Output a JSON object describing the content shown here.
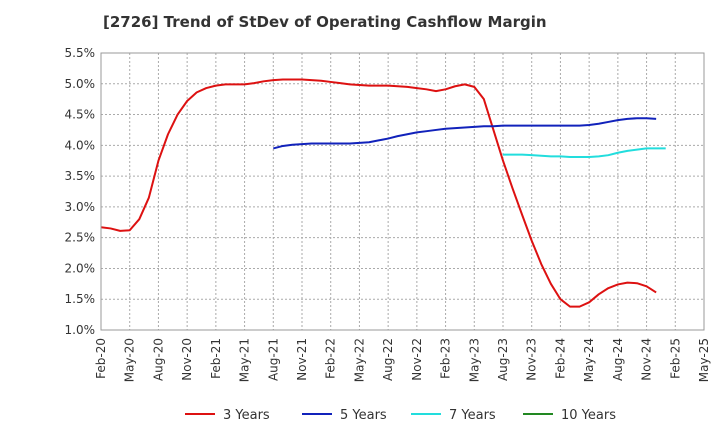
{
  "chart_data": {
    "type": "line",
    "title": "[2726]  Trend of StDev of Operating Cashflow Margin",
    "xlabel": "",
    "ylabel": "",
    "categories": [
      "Feb-20",
      "Mar-20",
      "Apr-20",
      "May-20",
      "Jun-20",
      "Jul-20",
      "Aug-20",
      "Sep-20",
      "Oct-20",
      "Nov-20",
      "Dec-20",
      "Jan-21",
      "Feb-21",
      "Mar-21",
      "Apr-21",
      "May-21",
      "Jun-21",
      "Jul-21",
      "Aug-21",
      "Sep-21",
      "Oct-21",
      "Nov-21",
      "Dec-21",
      "Jan-22",
      "Feb-22",
      "Mar-22",
      "Apr-22",
      "May-22",
      "Jun-22",
      "Jul-22",
      "Aug-22",
      "Sep-22",
      "Oct-22",
      "Nov-22",
      "Dec-22",
      "Jan-23",
      "Feb-23",
      "Mar-23",
      "Apr-23",
      "May-23",
      "Jun-23",
      "Jul-23",
      "Aug-23",
      "Sep-23",
      "Oct-23",
      "Nov-23",
      "Dec-23",
      "Jan-24",
      "Feb-24",
      "Mar-24",
      "Apr-24",
      "May-24",
      "Jun-24",
      "Jul-24",
      "Aug-24",
      "Sep-24",
      "Oct-24",
      "Nov-24",
      "Dec-24",
      "Jan-25",
      "Feb-25",
      "Mar-25",
      "Apr-25",
      "May-25"
    ],
    "x_tick_labels": [
      "Feb-20",
      "May-20",
      "Aug-20",
      "Nov-20",
      "Feb-21",
      "May-21",
      "Aug-21",
      "Nov-21",
      "Feb-22",
      "May-22",
      "Aug-22",
      "Nov-22",
      "Feb-23",
      "May-23",
      "Aug-23",
      "Nov-23",
      "Feb-24",
      "May-24",
      "Aug-24",
      "Nov-24",
      "Feb-25",
      "May-25"
    ],
    "y_tick_labels": [
      "1.0%",
      "1.5%",
      "2.0%",
      "2.5%",
      "3.0%",
      "3.5%",
      "4.0%",
      "4.5%",
      "5.0%",
      "5.5%"
    ],
    "ylim": [
      1.0,
      5.5
    ],
    "grid": true,
    "legend_position": "bottom",
    "series": [
      {
        "name": "3 Years",
        "color": "#dd1111",
        "values": [
          2.67,
          2.65,
          2.61,
          2.62,
          2.8,
          3.15,
          3.75,
          4.18,
          4.5,
          4.72,
          4.86,
          4.93,
          4.97,
          4.99,
          4.99,
          4.99,
          5.01,
          5.04,
          5.06,
          5.07,
          5.07,
          5.07,
          5.06,
          5.05,
          5.03,
          5.01,
          4.99,
          4.98,
          4.97,
          4.97,
          4.97,
          4.96,
          4.95,
          4.93,
          4.91,
          4.88,
          4.91,
          4.96,
          4.99,
          4.95,
          4.75,
          4.25,
          3.75,
          3.3,
          2.87,
          2.45,
          2.07,
          1.75,
          1.5,
          1.38,
          1.38,
          1.45,
          1.58,
          1.68,
          1.74,
          1.77,
          1.76,
          1.71,
          1.61,
          null,
          null,
          null,
          null,
          null
        ]
      },
      {
        "name": "5 Years",
        "color": "#1122bb",
        "values": [
          null,
          null,
          null,
          null,
          null,
          null,
          null,
          null,
          null,
          null,
          null,
          null,
          null,
          null,
          null,
          null,
          null,
          null,
          3.95,
          3.99,
          4.01,
          4.02,
          4.03,
          4.03,
          4.03,
          4.03,
          4.03,
          4.04,
          4.05,
          4.08,
          4.11,
          4.15,
          4.18,
          4.21,
          4.23,
          4.25,
          4.27,
          4.28,
          4.29,
          4.3,
          4.31,
          4.31,
          4.32,
          4.32,
          4.32,
          4.32,
          4.32,
          4.32,
          4.32,
          4.32,
          4.32,
          4.33,
          4.35,
          4.38,
          4.41,
          4.43,
          4.44,
          4.44,
          4.43,
          null,
          null,
          null,
          null,
          null
        ]
      },
      {
        "name": "7 Years",
        "color": "#22dddd",
        "values": [
          null,
          null,
          null,
          null,
          null,
          null,
          null,
          null,
          null,
          null,
          null,
          null,
          null,
          null,
          null,
          null,
          null,
          null,
          null,
          null,
          null,
          null,
          null,
          null,
          null,
          null,
          null,
          null,
          null,
          null,
          null,
          null,
          null,
          null,
          null,
          null,
          null,
          null,
          null,
          null,
          null,
          null,
          3.85,
          3.85,
          3.85,
          3.84,
          3.83,
          3.82,
          3.82,
          3.81,
          3.81,
          3.81,
          3.82,
          3.84,
          3.88,
          3.91,
          3.93,
          3.95,
          3.95,
          3.95,
          null,
          null,
          null,
          null
        ]
      },
      {
        "name": "10 Years",
        "color": "#228822",
        "values": [
          null,
          null,
          null,
          null,
          null,
          null,
          null,
          null,
          null,
          null,
          null,
          null,
          null,
          null,
          null,
          null,
          null,
          null,
          null,
          null,
          null,
          null,
          null,
          null,
          null,
          null,
          null,
          null,
          null,
          null,
          null,
          null,
          null,
          null,
          null,
          null,
          null,
          null,
          null,
          null,
          null,
          null,
          null,
          null,
          null,
          null,
          null,
          null,
          null,
          null,
          null,
          null,
          null,
          null,
          null,
          null,
          null,
          null,
          null,
          null,
          null,
          null,
          null,
          null
        ]
      }
    ]
  }
}
